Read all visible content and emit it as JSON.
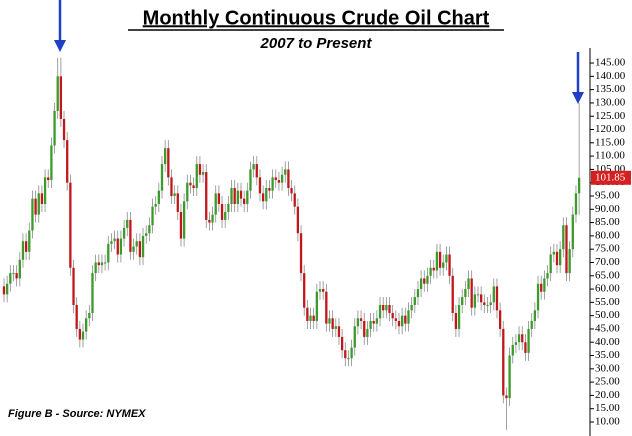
{
  "chart_data": {
    "type": "candlestick",
    "title": "Monthly Continuous Crude Oil Chart",
    "subtitle": "2007 to Present",
    "annotation": "Figure B - Source: NYMEX",
    "last_price": 101.85,
    "up_color": "#3a9a2a",
    "down_color": "#c0171b",
    "ylim": [
      5,
      150
    ],
    "yticks": [
      {
        "value": 10,
        "label": "10.00"
      },
      {
        "value": 15,
        "label": "15.00"
      },
      {
        "value": 20,
        "label": "20.00"
      },
      {
        "value": 25,
        "label": "25.00"
      },
      {
        "value": 30,
        "label": "30.00"
      },
      {
        "value": 35,
        "label": "35.00"
      },
      {
        "value": 40,
        "label": "40.00"
      },
      {
        "value": 45,
        "label": "45.00"
      },
      {
        "value": 50,
        "label": "50.00"
      },
      {
        "value": 55,
        "label": "55.00"
      },
      {
        "value": 60,
        "label": "60.00"
      },
      {
        "value": 65,
        "label": "65.00"
      },
      {
        "value": 70,
        "label": "70.00"
      },
      {
        "value": 75,
        "label": "75.00"
      },
      {
        "value": 80,
        "label": "80.00"
      },
      {
        "value": 85,
        "label": "85.00"
      },
      {
        "value": 90,
        "label": "90.00"
      },
      {
        "value": 95,
        "label": "95.00"
      },
      {
        "value": 100,
        "label": "100.00"
      },
      {
        "value": 105,
        "label": "105.00"
      },
      {
        "value": 110,
        "label": "110.00"
      },
      {
        "value": 115,
        "label": "115.00"
      },
      {
        "value": 120,
        "label": "120.00"
      },
      {
        "value": 125,
        "label": "125.00"
      },
      {
        "value": 130,
        "label": "130.00"
      },
      {
        "value": 135,
        "label": "135.00"
      },
      {
        "value": 140,
        "label": "140.00"
      },
      {
        "value": 145,
        "label": "145.00"
      }
    ],
    "open": [
      61,
      58,
      62,
      66,
      66,
      64,
      71,
      78,
      74,
      82,
      94,
      88,
      96,
      92,
      102,
      101,
      114,
      127,
      140,
      124,
      116,
      100,
      68,
      54,
      45,
      41,
      44,
      49,
      51,
      66,
      70,
      69,
      70,
      70,
      77,
      78,
      79,
      73,
      79,
      83,
      86,
      74,
      76,
      78,
      72,
      80,
      81,
      84,
      91,
      92,
      97,
      107,
      113,
      102,
      95,
      96,
      89,
      79,
      93,
      100,
      99,
      98,
      107,
      103,
      104,
      86,
      85,
      88,
      96,
      92,
      86,
      89,
      92,
      98,
      92,
      97,
      94,
      92,
      97,
      105,
      107,
      102,
      96,
      93,
      98,
      97,
      102,
      101,
      100,
      103,
      105,
      98,
      96,
      91,
      81,
      66,
      53,
      48,
      50,
      48,
      59,
      60,
      59,
      47,
      49,
      45,
      46,
      42,
      37,
      34,
      34,
      38,
      46,
      49,
      48,
      42,
      45,
      48,
      47,
      49,
      54,
      52,
      54,
      51,
      49,
      48,
      46,
      50,
      47,
      52,
      54,
      57,
      60,
      64,
      62,
      65,
      68,
      67,
      74,
      68,
      70,
      73,
      65,
      51,
      45,
      54,
      57,
      60,
      64,
      53,
      58,
      58,
      55,
      54,
      54,
      55,
      61,
      52,
      45,
      20,
      19,
      35,
      39,
      40,
      43,
      40,
      36,
      45,
      48,
      52,
      62,
      59,
      64,
      66,
      73,
      74,
      69,
      75,
      84,
      66,
      75,
      88,
      96
    ],
    "high": [
      64,
      65,
      69,
      69,
      69,
      74,
      81,
      81,
      85,
      97,
      97,
      99,
      99,
      105,
      105,
      117,
      130,
      147,
      147,
      127,
      119,
      103,
      71,
      57,
      48,
      47,
      52,
      54,
      69,
      73,
      73,
      73,
      73,
      80,
      81,
      82,
      82,
      82,
      86,
      89,
      89,
      79,
      81,
      81,
      83,
      84,
      87,
      94,
      95,
      100,
      110,
      116,
      116,
      105,
      99,
      99,
      92,
      96,
      103,
      103,
      102,
      110,
      110,
      107,
      107,
      89,
      91,
      99,
      99,
      95,
      92,
      95,
      101,
      101,
      100,
      100,
      97,
      100,
      108,
      110,
      110,
      105,
      99,
      101,
      101,
      105,
      105,
      104,
      106,
      108,
      108,
      101,
      99,
      94,
      84,
      69,
      56,
      53,
      53,
      62,
      63,
      63,
      62,
      52,
      52,
      49,
      49,
      45,
      40,
      37,
      41,
      49,
      52,
      52,
      51,
      48,
      51,
      51,
      52,
      57,
      57,
      57,
      57,
      54,
      52,
      51,
      53,
      53,
      55,
      57,
      60,
      63,
      67,
      67,
      68,
      71,
      71,
      77,
      77,
      73,
      76,
      76,
      68,
      54,
      57,
      60,
      63,
      67,
      67,
      61,
      61,
      61,
      58,
      57,
      58,
      64,
      64,
      55,
      48,
      23,
      38,
      42,
      43,
      46,
      46,
      43,
      48,
      51,
      55,
      65,
      65,
      67,
      69,
      76,
      77,
      77,
      78,
      87,
      87,
      78,
      91,
      99,
      130
    ],
    "low": [
      55,
      55,
      59,
      63,
      61,
      61,
      68,
      71,
      71,
      79,
      85,
      85,
      89,
      89,
      98,
      98,
      111,
      124,
      121,
      113,
      97,
      65,
      51,
      42,
      38,
      38,
      41,
      46,
      48,
      63,
      66,
      66,
      67,
      67,
      74,
      75,
      70,
      70,
      76,
      80,
      71,
      71,
      73,
      69,
      69,
      77,
      78,
      81,
      88,
      89,
      94,
      104,
      99,
      92,
      92,
      86,
      76,
      76,
      90,
      96,
      95,
      95,
      100,
      100,
      83,
      82,
      82,
      85,
      89,
      83,
      83,
      86,
      89,
      89,
      89,
      91,
      89,
      89,
      94,
      102,
      99,
      93,
      90,
      90,
      94,
      94,
      98,
      97,
      97,
      100,
      95,
      93,
      88,
      78,
      63,
      50,
      45,
      45,
      45,
      45,
      56,
      56,
      44,
      44,
      42,
      42,
      39,
      34,
      31,
      31,
      31,
      35,
      43,
      45,
      39,
      39,
      42,
      44,
      44,
      46,
      49,
      49,
      48,
      46,
      45,
      43,
      43,
      44,
      44,
      49,
      51,
      54,
      57,
      59,
      59,
      62,
      64,
      64,
      65,
      65,
      67,
      62,
      48,
      42,
      42,
      51,
      54,
      57,
      50,
      50,
      55,
      52,
      51,
      51,
      51,
      52,
      49,
      42,
      17,
      7,
      16,
      32,
      36,
      37,
      37,
      33,
      33,
      42,
      45,
      49,
      56,
      56,
      61,
      63,
      70,
      66,
      66,
      72,
      63,
      63,
      72,
      85,
      88
    ],
    "close": [
      58,
      62,
      66,
      66,
      64,
      71,
      78,
      74,
      82,
      94,
      88,
      96,
      92,
      102,
      101,
      114,
      127,
      140,
      124,
      116,
      100,
      68,
      54,
      45,
      41,
      44,
      49,
      51,
      66,
      70,
      69,
      70,
      70,
      77,
      78,
      79,
      73,
      79,
      83,
      86,
      74,
      76,
      78,
      72,
      80,
      81,
      84,
      91,
      92,
      97,
      107,
      113,
      102,
      95,
      96,
      89,
      79,
      93,
      100,
      99,
      98,
      107,
      103,
      104,
      86,
      85,
      88,
      96,
      92,
      86,
      89,
      92,
      98,
      92,
      97,
      94,
      92,
      97,
      105,
      107,
      102,
      96,
      93,
      98,
      97,
      102,
      101,
      100,
      103,
      105,
      98,
      96,
      91,
      81,
      66,
      53,
      48,
      50,
      48,
      59,
      60,
      59,
      47,
      49,
      45,
      46,
      42,
      37,
      34,
      34,
      38,
      46,
      49,
      48,
      42,
      45,
      48,
      47,
      49,
      54,
      52,
      54,
      51,
      49,
      48,
      46,
      50,
      47,
      52,
      54,
      57,
      60,
      64,
      62,
      65,
      68,
      67,
      74,
      68,
      70,
      73,
      65,
      51,
      45,
      54,
      57,
      60,
      64,
      53,
      58,
      58,
      55,
      54,
      54,
      55,
      61,
      52,
      45,
      20,
      19,
      35,
      39,
      40,
      43,
      40,
      36,
      45,
      48,
      52,
      62,
      59,
      64,
      66,
      73,
      74,
      69,
      75,
      84,
      66,
      75,
      88,
      96,
      101.85
    ]
  }
}
